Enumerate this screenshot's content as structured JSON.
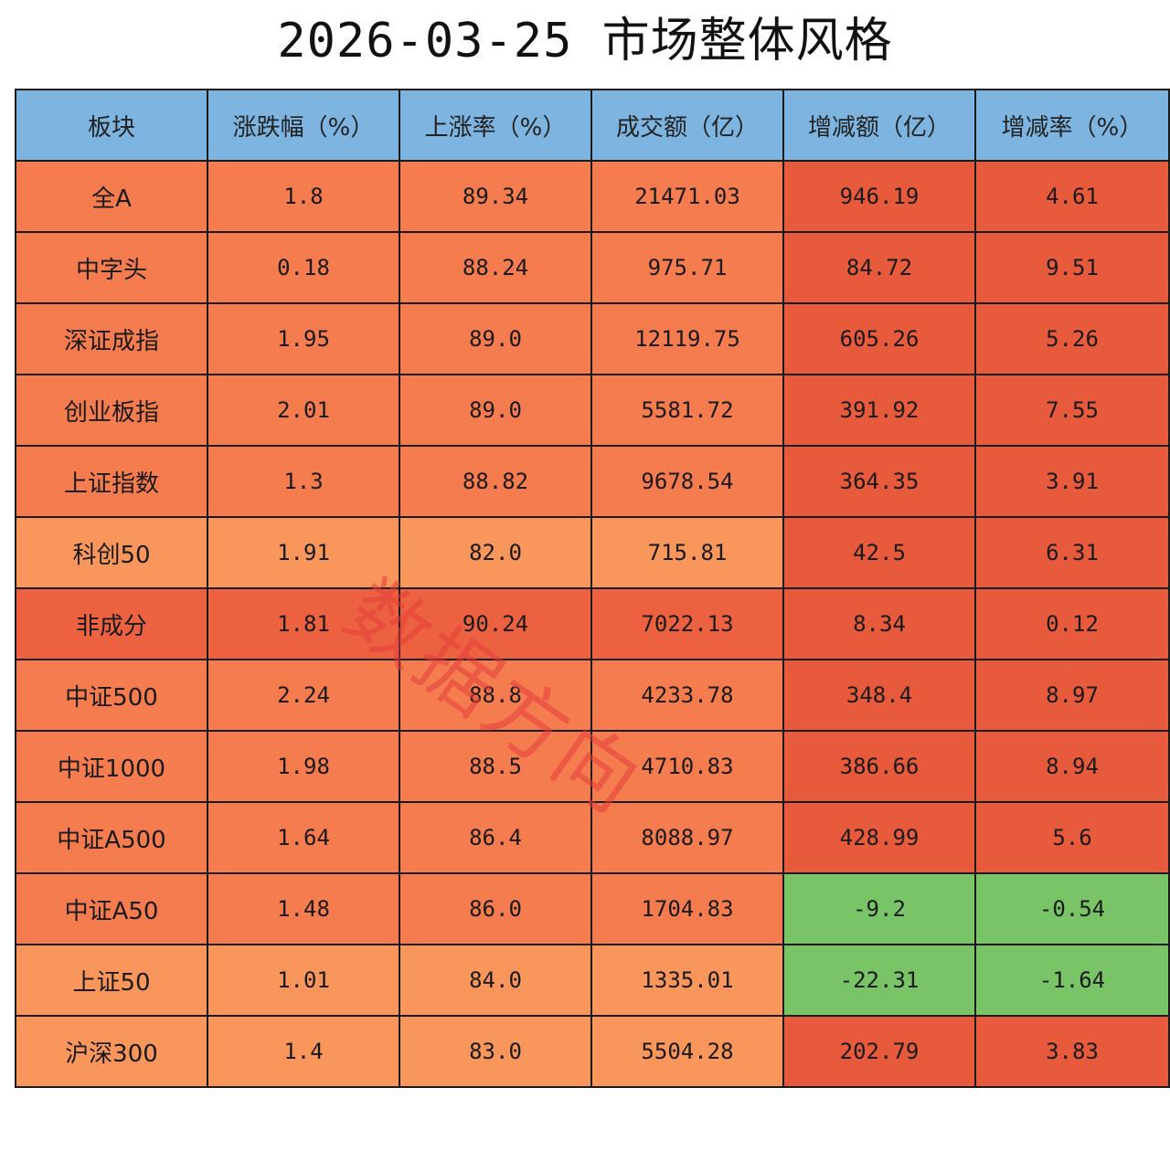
{
  "title": "2026-03-25 市场整体风格",
  "watermark": "数据方向",
  "colors": {
    "header": "#7db4e0",
    "up_light": "#f8965c",
    "up_mid": "#f47c4e",
    "up_deep": "#ec6240",
    "up_strong": "#e85a3c",
    "down_green": "#78c466"
  },
  "chart_data": {
    "type": "table",
    "title": "2026-03-25 市场整体风格",
    "columns": [
      "板块",
      "涨跌幅（%）",
      "上涨率（%）",
      "成交额（亿）",
      "增减额（亿）",
      "增减率（%）"
    ],
    "rows": [
      {
        "name": "全A",
        "chg": "1.8",
        "up_rate": "89.34",
        "turnover": "21471.03",
        "delta": "946.19",
        "delta_rate": "4.61",
        "c": [
          "up_mid",
          "up_mid",
          "up_mid",
          "up_mid",
          "up_strong",
          "up_strong"
        ]
      },
      {
        "name": "中字头",
        "chg": "0.18",
        "up_rate": "88.24",
        "turnover": "975.71",
        "delta": "84.72",
        "delta_rate": "9.51",
        "c": [
          "up_mid",
          "up_mid",
          "up_mid",
          "up_mid",
          "up_strong",
          "up_strong"
        ]
      },
      {
        "name": "深证成指",
        "chg": "1.95",
        "up_rate": "89.0",
        "turnover": "12119.75",
        "delta": "605.26",
        "delta_rate": "5.26",
        "c": [
          "up_mid",
          "up_mid",
          "up_mid",
          "up_mid",
          "up_strong",
          "up_strong"
        ]
      },
      {
        "name": "创业板指",
        "chg": "2.01",
        "up_rate": "89.0",
        "turnover": "5581.72",
        "delta": "391.92",
        "delta_rate": "7.55",
        "c": [
          "up_mid",
          "up_mid",
          "up_mid",
          "up_mid",
          "up_strong",
          "up_strong"
        ]
      },
      {
        "name": "上证指数",
        "chg": "1.3",
        "up_rate": "88.82",
        "turnover": "9678.54",
        "delta": "364.35",
        "delta_rate": "3.91",
        "c": [
          "up_mid",
          "up_mid",
          "up_mid",
          "up_mid",
          "up_strong",
          "up_strong"
        ]
      },
      {
        "name": "科创50",
        "chg": "1.91",
        "up_rate": "82.0",
        "turnover": "715.81",
        "delta": "42.5",
        "delta_rate": "6.31",
        "c": [
          "up_light",
          "up_light",
          "up_light",
          "up_light",
          "up_strong",
          "up_strong"
        ]
      },
      {
        "name": "非成分",
        "chg": "1.81",
        "up_rate": "90.24",
        "turnover": "7022.13",
        "delta": "8.34",
        "delta_rate": "0.12",
        "c": [
          "up_deep",
          "up_deep",
          "up_deep",
          "up_deep",
          "up_strong",
          "up_strong"
        ]
      },
      {
        "name": "中证500",
        "chg": "2.24",
        "up_rate": "88.8",
        "turnover": "4233.78",
        "delta": "348.4",
        "delta_rate": "8.97",
        "c": [
          "up_mid",
          "up_mid",
          "up_mid",
          "up_mid",
          "up_strong",
          "up_strong"
        ]
      },
      {
        "name": "中证1000",
        "chg": "1.98",
        "up_rate": "88.5",
        "turnover": "4710.83",
        "delta": "386.66",
        "delta_rate": "8.94",
        "c": [
          "up_mid",
          "up_mid",
          "up_mid",
          "up_mid",
          "up_strong",
          "up_strong"
        ]
      },
      {
        "name": "中证A500",
        "chg": "1.64",
        "up_rate": "86.4",
        "turnover": "8088.97",
        "delta": "428.99",
        "delta_rate": "5.6",
        "c": [
          "up_mid",
          "up_mid",
          "up_mid",
          "up_mid",
          "up_strong",
          "up_strong"
        ]
      },
      {
        "name": "中证A50",
        "chg": "1.48",
        "up_rate": "86.0",
        "turnover": "1704.83",
        "delta": "-9.2",
        "delta_rate": "-0.54",
        "c": [
          "up_mid",
          "up_mid",
          "up_mid",
          "up_mid",
          "down_green",
          "down_green"
        ]
      },
      {
        "name": "上证50",
        "chg": "1.01",
        "up_rate": "84.0",
        "turnover": "1335.01",
        "delta": "-22.31",
        "delta_rate": "-1.64",
        "c": [
          "up_light",
          "up_light",
          "up_light",
          "up_light",
          "down_green",
          "down_green"
        ]
      },
      {
        "name": "沪深300",
        "chg": "1.4",
        "up_rate": "83.0",
        "turnover": "5504.28",
        "delta": "202.79",
        "delta_rate": "3.83",
        "c": [
          "up_light",
          "up_light",
          "up_light",
          "up_light",
          "up_strong",
          "up_strong"
        ]
      }
    ]
  }
}
